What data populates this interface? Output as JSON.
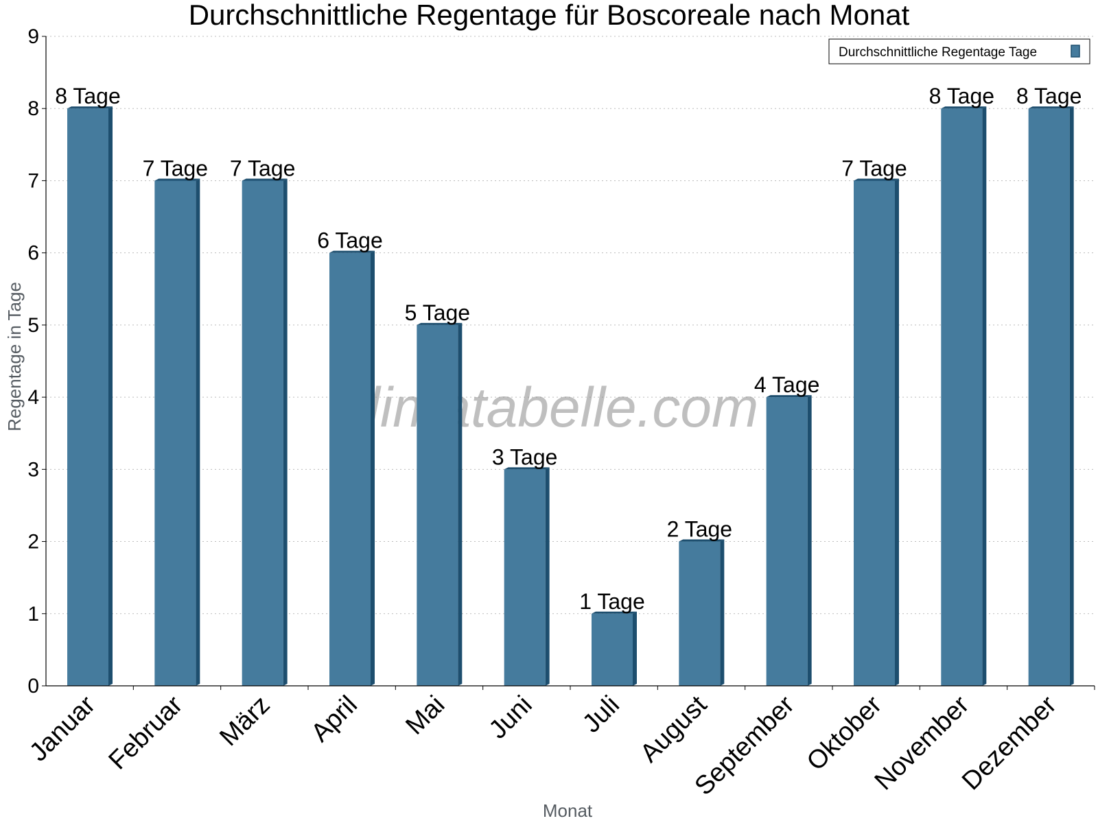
{
  "chart_data": {
    "type": "bar",
    "title": "Durchschnittliche Regentage für Boscoreale nach Monat",
    "xlabel": "Monat",
    "ylabel": "Regentage in Tage",
    "categories": [
      "Januar",
      "Februar",
      "März",
      "April",
      "Mai",
      "Juni",
      "Juli",
      "August",
      "September",
      "Oktober",
      "November",
      "Dezember"
    ],
    "series": [
      {
        "name": "Durchschnittliche Regentage Tage",
        "values": [
          8,
          7,
          7,
          6,
          5,
          3,
          1,
          2,
          4,
          7,
          8,
          8
        ],
        "data_labels": [
          "8 Tage",
          "7 Tage",
          "7 Tage",
          "6 Tage",
          "5 Tage",
          "3 Tage",
          "1 Tage",
          "2 Tage",
          "4 Tage",
          "7 Tage",
          "8 Tage",
          "8 Tage"
        ]
      }
    ],
    "ylim": [
      0,
      9
    ],
    "yticks": [
      "0",
      "1",
      "2",
      "3",
      "4",
      "5",
      "6",
      "7",
      "8",
      "9"
    ],
    "grid": "horizontal dotted",
    "legend_position": "top-right",
    "colors": {
      "bar": "#457b9d",
      "bar_side": "#1d4e6e"
    },
    "watermark": "klimatabelle.com"
  }
}
